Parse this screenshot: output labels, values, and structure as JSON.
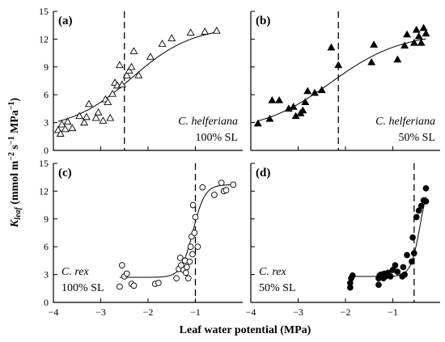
{
  "figure": {
    "xlabel": "Leaf water potential (MPa)",
    "ylabel_main": "K",
    "ylabel_sub": "leaf",
    "ylabel_rest": " (mmol m",
    "ylabel_sup1": "−2",
    "ylabel_mid": " s",
    "ylabel_sup2": "−1",
    "ylabel_mpa": " MPa",
    "ylabel_sup3": "−1",
    "ylabel_end": ")"
  },
  "chart_data": [
    {
      "panel": "(a)",
      "type": "scatter",
      "species": "C. helferiana",
      "treatment": "100% SL",
      "marker": "open-triangle",
      "xlim": [
        -4,
        0
      ],
      "ylim": [
        0,
        15
      ],
      "xticks": [
        -4,
        -3,
        -2,
        -1
      ],
      "yticks": [
        0,
        3,
        6,
        9,
        12,
        15
      ],
      "threshold_x": -2.5,
      "curve": {
        "ymin": 2.2,
        "ymax": 13.4,
        "x50": -2.35,
        "slope": 1.55
      },
      "points": [
        [
          -3.9,
          2.2
        ],
        [
          -3.85,
          1.8
        ],
        [
          -3.82,
          2.8
        ],
        [
          -3.75,
          2.3
        ],
        [
          -3.7,
          3.1
        ],
        [
          -3.6,
          2.4
        ],
        [
          -3.45,
          3.7
        ],
        [
          -3.35,
          3.0
        ],
        [
          -3.3,
          3.6
        ],
        [
          -3.25,
          5.0
        ],
        [
          -3.1,
          3.5
        ],
        [
          -3.05,
          4.1
        ],
        [
          -2.95,
          3.2
        ],
        [
          -2.9,
          5.5
        ],
        [
          -2.85,
          5.2
        ],
        [
          -2.8,
          3.5
        ],
        [
          -2.75,
          6.1
        ],
        [
          -2.7,
          7.3
        ],
        [
          -2.65,
          7.0
        ],
        [
          -2.6,
          9.2
        ],
        [
          -2.55,
          7.1
        ],
        [
          -2.45,
          8.1
        ],
        [
          -2.4,
          8.6
        ],
        [
          -2.35,
          9.0
        ],
        [
          -2.3,
          10.7
        ],
        [
          -2.2,
          8.1
        ],
        [
          -1.95,
          10.1
        ],
        [
          -1.7,
          11.5
        ],
        [
          -1.5,
          12.1
        ],
        [
          -1.1,
          12.7
        ],
        [
          -0.8,
          12.8
        ],
        [
          -0.55,
          12.9
        ]
      ]
    },
    {
      "panel": "(b)",
      "type": "scatter",
      "species": "C. helferiana",
      "treatment": "50% SL",
      "marker": "filled-triangle",
      "xlim": [
        -4,
        0
      ],
      "ylim": [
        0,
        15
      ],
      "xticks": [
        -4,
        -3,
        -2,
        -1
      ],
      "yticks": [
        0,
        3,
        6,
        9,
        12,
        15
      ],
      "threshold_x": -2.15,
      "curve": {
        "ymin": 2.0,
        "ymax": 12.7,
        "x50": -2.3,
        "slope": 1.35
      },
      "points": [
        [
          -3.85,
          2.9
        ],
        [
          -3.6,
          3.4
        ],
        [
          -3.55,
          5.4
        ],
        [
          -3.4,
          5.4
        ],
        [
          -3.2,
          4.5
        ],
        [
          -3.1,
          4.7
        ],
        [
          -3.05,
          3.7
        ],
        [
          -2.95,
          4.0
        ],
        [
          -2.9,
          4.3
        ],
        [
          -2.85,
          5.2
        ],
        [
          -2.8,
          6.4
        ],
        [
          -2.65,
          6.2
        ],
        [
          -2.5,
          6.5
        ],
        [
          -2.3,
          11.1
        ],
        [
          -2.15,
          9.2
        ],
        [
          -1.45,
          9.5
        ],
        [
          -1.4,
          11.4
        ],
        [
          -0.9,
          9.8
        ],
        [
          -0.75,
          11.3
        ],
        [
          -0.7,
          12.5
        ],
        [
          -0.55,
          11.6
        ],
        [
          -0.5,
          13.0
        ],
        [
          -0.45,
          12.3
        ],
        [
          -0.4,
          11.6
        ],
        [
          -0.35,
          13.2
        ],
        [
          -0.3,
          12.6
        ]
      ]
    },
    {
      "panel": "(c)",
      "type": "scatter",
      "species": "C. rex",
      "treatment": "100% SL",
      "marker": "open-circle",
      "xlim": [
        -4,
        0
      ],
      "ylim": [
        0,
        15
      ],
      "xticks": [
        -4,
        -3,
        -2,
        -1
      ],
      "yticks": [
        0,
        3,
        6,
        9,
        12,
        15
      ],
      "threshold_x": -1.0,
      "curve": {
        "ymin": 2.7,
        "ymax": 12.7,
        "x50": -1.05,
        "slope": 8
      },
      "points": [
        [
          -2.55,
          4.0
        ],
        [
          -2.5,
          2.8
        ],
        [
          -2.45,
          3.1
        ],
        [
          -2.35,
          2.0
        ],
        [
          -2.3,
          1.8
        ],
        [
          -2.6,
          1.7
        ],
        [
          -1.85,
          2.0
        ],
        [
          -1.78,
          2.1
        ],
        [
          -1.4,
          2.6
        ],
        [
          -1.35,
          3.6
        ],
        [
          -1.32,
          4.8
        ],
        [
          -1.3,
          4.0
        ],
        [
          -1.25,
          3.5
        ],
        [
          -1.22,
          4.5
        ],
        [
          -1.2,
          3.2
        ],
        [
          -1.18,
          3.8
        ],
        [
          -1.15,
          2.6
        ],
        [
          -1.12,
          4.4
        ],
        [
          -1.1,
          6.0
        ],
        [
          -1.08,
          7.1
        ],
        [
          -1.06,
          5.2
        ],
        [
          -1.05,
          10.5
        ],
        [
          -1.02,
          7.5
        ],
        [
          -1.0,
          9.2
        ],
        [
          -0.95,
          6.0
        ],
        [
          -0.85,
          12.4
        ],
        [
          -0.6,
          11.6
        ],
        [
          -0.45,
          12.9
        ],
        [
          -0.4,
          12.0
        ],
        [
          -0.35,
          12.1
        ],
        [
          -0.2,
          12.7
        ]
      ]
    },
    {
      "panel": "(d)",
      "type": "scatter",
      "species": "C. rex",
      "treatment": "50% SL",
      "marker": "filled-circle",
      "xlim": [
        -4,
        0
      ],
      "ylim": [
        0,
        15
      ],
      "xticks": [
        -4,
        -3,
        -2,
        -1
      ],
      "yticks": [
        0,
        3,
        6,
        9,
        12,
        15
      ],
      "threshold_x": -0.55,
      "curve": {
        "ymin": 2.8,
        "ymax": 14.0,
        "x50": -0.42,
        "slope": 10
      },
      "points": [
        [
          -1.9,
          1.6
        ],
        [
          -1.9,
          2.1
        ],
        [
          -1.88,
          2.6
        ],
        [
          -1.85,
          2.9
        ],
        [
          -1.3,
          1.9
        ],
        [
          -1.3,
          2.6
        ],
        [
          -1.28,
          2.9
        ],
        [
          -1.25,
          3.0
        ],
        [
          -1.2,
          2.6
        ],
        [
          -1.18,
          3.1
        ],
        [
          -1.15,
          2.8
        ],
        [
          -1.1,
          3.2
        ],
        [
          -1.05,
          2.8
        ],
        [
          -1.0,
          3.5
        ],
        [
          -0.95,
          4.0
        ],
        [
          -0.9,
          3.3
        ],
        [
          -0.8,
          2.8
        ],
        [
          -0.78,
          3.8
        ],
        [
          -0.75,
          3.0
        ],
        [
          -0.7,
          5.1
        ],
        [
          -0.6,
          4.4
        ],
        [
          -0.58,
          7.0
        ],
        [
          -0.55,
          5.3
        ],
        [
          -0.5,
          9.2
        ],
        [
          -0.45,
          9.9
        ],
        [
          -0.4,
          10.4
        ],
        [
          -0.35,
          11.0
        ],
        [
          -0.3,
          12.3
        ],
        [
          -0.3,
          10.9
        ]
      ]
    }
  ]
}
